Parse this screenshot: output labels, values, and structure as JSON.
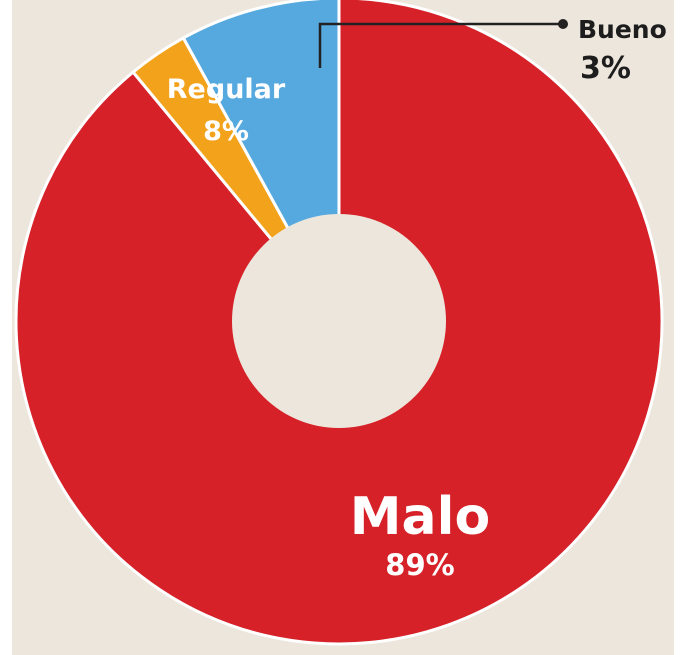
{
  "chart_data": {
    "type": "donut",
    "slices": [
      {
        "label": "Malo",
        "value": 89,
        "value_text": "89%",
        "color": "#d62128"
      },
      {
        "label": "Bueno",
        "value": 3,
        "value_text": "3%",
        "color": "#f3a21c"
      },
      {
        "label": "Regular",
        "value": 8,
        "value_text": "8%",
        "color": "#56a9df"
      }
    ],
    "center_color": "#ece6dc",
    "label_colors": {
      "inside": "#ffffff",
      "outside": "#1d1d1d"
    },
    "background_color": "#ece6dc"
  }
}
